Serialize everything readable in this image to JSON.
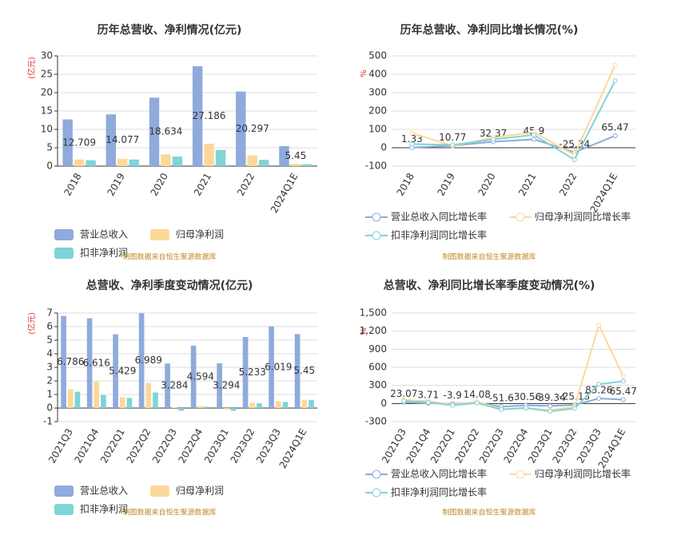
{
  "chart_data": [
    {
      "type": "bar",
      "title": "历年总营收、净利情况(亿元)",
      "y_label": "(亿元)",
      "categories": [
        "2018",
        "2019",
        "2020",
        "2021",
        "2022",
        "2024Q1E"
      ],
      "series": [
        {
          "name": "营业总收入",
          "color": "#8faadc",
          "values": [
            12.709,
            14.077,
            18.634,
            27.186,
            20.297,
            5.45
          ],
          "labels": true
        },
        {
          "name": "归母净利润",
          "color": "#fdd89a",
          "values": [
            1.8,
            2.0,
            3.2,
            6.1,
            2.9,
            0.6
          ]
        },
        {
          "name": "扣非净利润",
          "color": "#7fd4d6",
          "values": [
            1.6,
            1.8,
            2.6,
            4.4,
            1.7,
            0.5
          ]
        }
      ],
      "ylim": [
        0,
        30
      ],
      "yticks": [
        0,
        5,
        10,
        15,
        20,
        25,
        30
      ],
      "grid": true,
      "source": "制图数据来自恒生聚源数据库"
    },
    {
      "type": "line",
      "title": "历年总营收、净利同比增长情况(%)",
      "y_label": "%",
      "categories": [
        "2018",
        "2019",
        "2020",
        "2021",
        "2022",
        "2024Q1E"
      ],
      "series": [
        {
          "name": "营业总收入同比增长率",
          "color": "#8faadc",
          "values": [
            1.33,
            10.77,
            32.37,
            45.9,
            -25.34,
            65.47
          ],
          "labels": true
        },
        {
          "name": "归母净利润同比增长率",
          "color": "#fdd89a",
          "values": [
            80,
            10,
            55,
            85,
            -40,
            450
          ]
        },
        {
          "name": "扣非净利润同比增长率",
          "color": "#7fd4d6",
          "values": [
            20,
            15,
            45,
            70,
            -65,
            365
          ]
        }
      ],
      "ylim": [
        -100,
        500
      ],
      "yticks": [
        -100,
        0,
        100,
        200,
        300,
        400,
        500
      ],
      "grid": true,
      "source": "制图数据来自恒生聚源数据库"
    },
    {
      "type": "bar",
      "title": "总营收、净利季度变动情况(亿元)",
      "y_label": "(亿元)",
      "categories": [
        "2021Q3",
        "2021Q4",
        "2022Q1",
        "2022Q2",
        "2022Q3",
        "2022Q4",
        "2023Q1",
        "2023Q2",
        "2023Q3",
        "2024Q1E"
      ],
      "series": [
        {
          "name": "营业总收入",
          "color": "#8faadc",
          "values": [
            6.786,
            6.616,
            5.429,
            6.989,
            3.284,
            4.594,
            3.294,
            5.233,
            6.019,
            5.45
          ],
          "labels": true
        },
        {
          "name": "归母净利润",
          "color": "#fdd89a",
          "values": [
            1.4,
            1.95,
            0.8,
            1.85,
            0.05,
            0.15,
            -0.1,
            0.4,
            0.5,
            0.6
          ]
        },
        {
          "name": "扣非净利润",
          "color": "#7fd4d6",
          "values": [
            1.2,
            0.95,
            0.75,
            1.15,
            -0.2,
            0.1,
            -0.2,
            0.35,
            0.45,
            0.6
          ]
        }
      ],
      "ylim": [
        -1,
        7
      ],
      "yticks": [
        -1,
        0,
        1,
        2,
        3,
        4,
        5,
        6,
        7
      ],
      "grid": true,
      "source": "制图数据来自恒生聚源数据库"
    },
    {
      "type": "line",
      "title": "总营收、净利同比增长率季度变动情况(%)",
      "y_label": "%",
      "categories": [
        "2021Q3",
        "2021Q4",
        "2022Q1",
        "2022Q2",
        "2022Q3",
        "2022Q4",
        "2023Q1",
        "2023Q2",
        "2023Q3",
        "2024Q1E"
      ],
      "series": [
        {
          "name": "营业总收入同比增长率",
          "color": "#8faadc",
          "values": [
            23.07,
            3.71,
            -3.9,
            14.08,
            -51.6,
            -30.56,
            -39.34,
            -25.13,
            83.26,
            65.47
          ],
          "labels": true
        },
        {
          "name": "归母净利润同比增长率",
          "color": "#fdd89a",
          "values": [
            60,
            40,
            -20,
            30,
            -90,
            -80,
            -110,
            -60,
            1300,
            450
          ]
        },
        {
          "name": "扣非净利润同比增长率",
          "color": "#7fd4d6",
          "values": [
            40,
            20,
            -30,
            10,
            -100,
            -70,
            -130,
            -80,
            320,
            370
          ]
        }
      ],
      "ylim": [
        -300,
        1500
      ],
      "yticks": [
        -300,
        0,
        300,
        600,
        900,
        {
          "value": 1200,
          "label": "1,200"
        },
        {
          "value": 1500,
          "label": "1,500"
        }
      ],
      "grid": true,
      "source": "制图数据来自恒生聚源数据库"
    }
  ]
}
